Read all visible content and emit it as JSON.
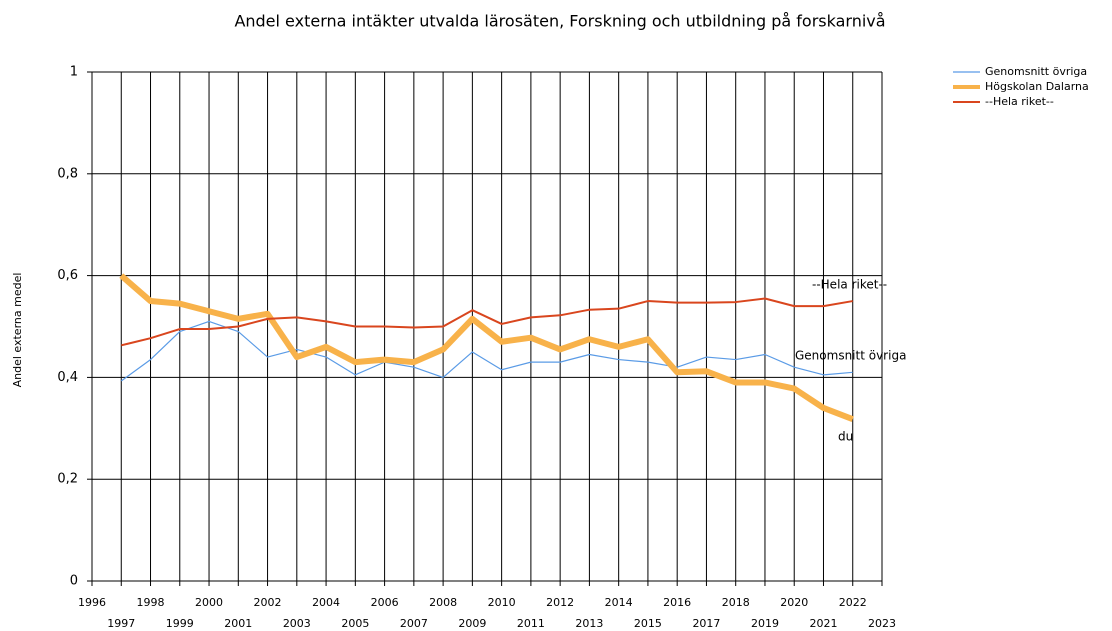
{
  "chart_data": {
    "type": "line",
    "title": "Andel externa intäkter utvalda lärosäten, Forskning och utbildning på forskarnivå",
    "y_label": "Andel externa medel",
    "x": [
      1997,
      1998,
      1999,
      2000,
      2001,
      2002,
      2003,
      2004,
      2005,
      2006,
      2007,
      2008,
      2009,
      2010,
      2011,
      2012,
      2013,
      2014,
      2015,
      2016,
      2017,
      2018,
      2019,
      2020,
      2021,
      2022
    ],
    "series": [
      {
        "name": "Genomsnitt övriga",
        "color": "#5a9be6",
        "line_width": 1.2,
        "values": [
          0.393,
          0.435,
          0.49,
          0.51,
          0.49,
          0.44,
          0.455,
          0.44,
          0.405,
          0.43,
          0.42,
          0.4,
          0.45,
          0.415,
          0.43,
          0.43,
          0.445,
          0.435,
          0.43,
          0.42,
          0.44,
          0.435,
          0.445,
          0.42,
          0.405,
          0.41
        ]
      },
      {
        "name": "Högskolan Dalarna",
        "color": "#f8b24a",
        "line_width": 6,
        "values": [
          0.6,
          0.55,
          0.545,
          0.53,
          0.515,
          0.525,
          0.44,
          0.46,
          0.43,
          0.435,
          0.43,
          0.455,
          0.515,
          0.47,
          0.478,
          0.455,
          0.475,
          0.46,
          0.475,
          0.41,
          0.412,
          0.39,
          0.39,
          0.378,
          0.34,
          0.318
        ]
      },
      {
        "name": "--Hela riket--",
        "color": "#d9461e",
        "line_width": 2,
        "values": [
          0.463,
          0.477,
          0.495,
          0.495,
          0.5,
          0.515,
          0.518,
          0.51,
          0.5,
          0.5,
          0.498,
          0.5,
          0.532,
          0.505,
          0.518,
          0.522,
          0.533,
          0.535,
          0.55,
          0.547,
          0.547,
          0.548,
          0.555,
          0.54,
          0.54,
          0.55
        ]
      }
    ],
    "annotations": [
      "Genomsnitt övriga",
      "du",
      "--Hela riket--"
    ],
    "xlim": [
      1996,
      2023
    ],
    "xticks": [
      1996,
      1997,
      1998,
      1999,
      2000,
      2001,
      2002,
      2003,
      2004,
      2005,
      2006,
      2007,
      2008,
      2009,
      2010,
      2011,
      2012,
      2013,
      2014,
      2015,
      2016,
      2017,
      2018,
      2019,
      2020,
      2021,
      2022,
      2023
    ],
    "ylim": [
      0,
      1
    ],
    "yticks": [
      0,
      {
        "value": 0.2,
        "label": "0,2"
      },
      {
        "value": 0.4,
        "label": "0,4"
      },
      {
        "value": 0.6,
        "label": "0,6"
      },
      {
        "value": 0.8,
        "label": "0,8"
      },
      1
    ],
    "grid": true,
    "legend": "top-right"
  }
}
